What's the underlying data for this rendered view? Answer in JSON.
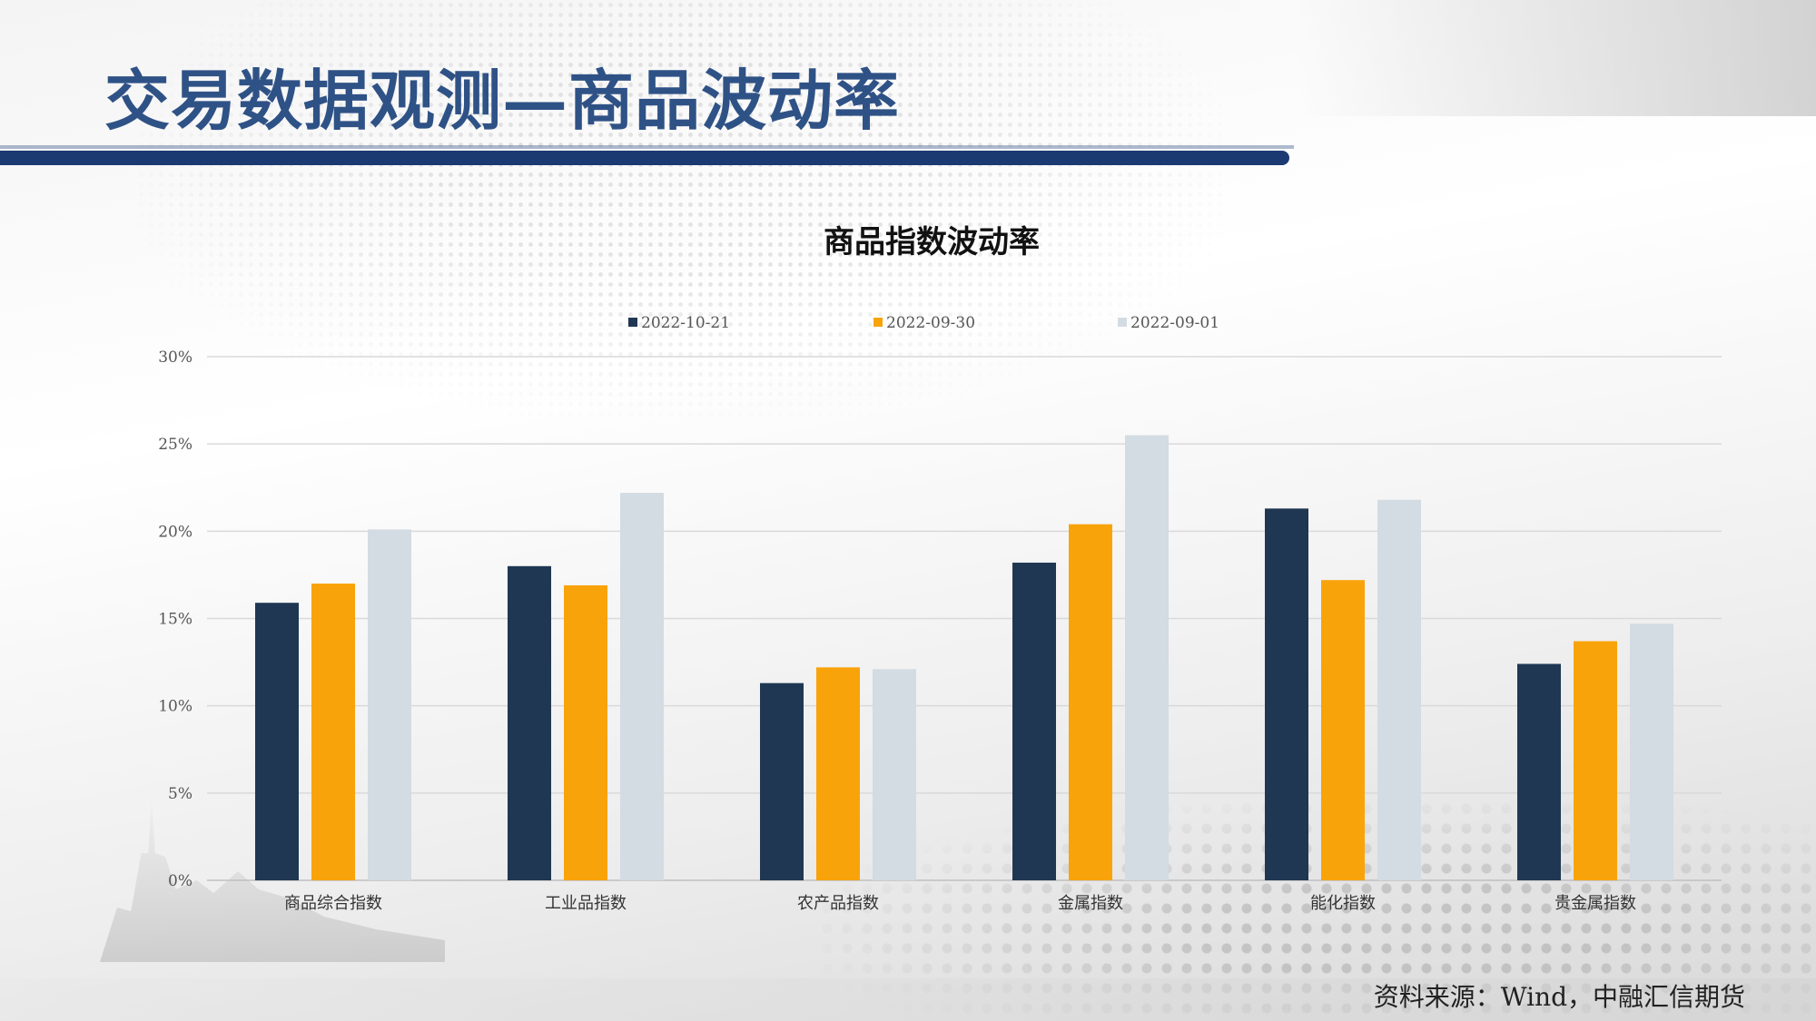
{
  "slide": {
    "title": "交易数据观测—商品波动率",
    "source": "资料来源：Wind，中融汇信期货"
  },
  "chart_data": {
    "type": "bar",
    "title": "商品指数波动率",
    "categories": [
      "商品综合指数",
      "工业品指数",
      "农产品指数",
      "金属指数",
      "能化指数",
      "贵金属指数"
    ],
    "series": [
      {
        "name": "2022-10-21",
        "color": "#1f3753",
        "values": [
          15.9,
          18.0,
          11.3,
          18.2,
          21.3,
          12.4
        ]
      },
      {
        "name": "2022-09-30",
        "color": "#f9a30b",
        "values": [
          17.0,
          16.9,
          12.2,
          20.4,
          17.2,
          13.7
        ]
      },
      {
        "name": "2022-09-01",
        "color": "#d3dbe3",
        "values": [
          20.1,
          22.2,
          12.1,
          25.5,
          21.8,
          14.7
        ]
      }
    ],
    "ylim": [
      0,
      30
    ],
    "yticks": [
      "0%",
      "5%",
      "10%",
      "15%",
      "20%",
      "25%",
      "30%"
    ],
    "xlabel": "",
    "ylabel": "",
    "grid": true,
    "legend_position": "top"
  }
}
